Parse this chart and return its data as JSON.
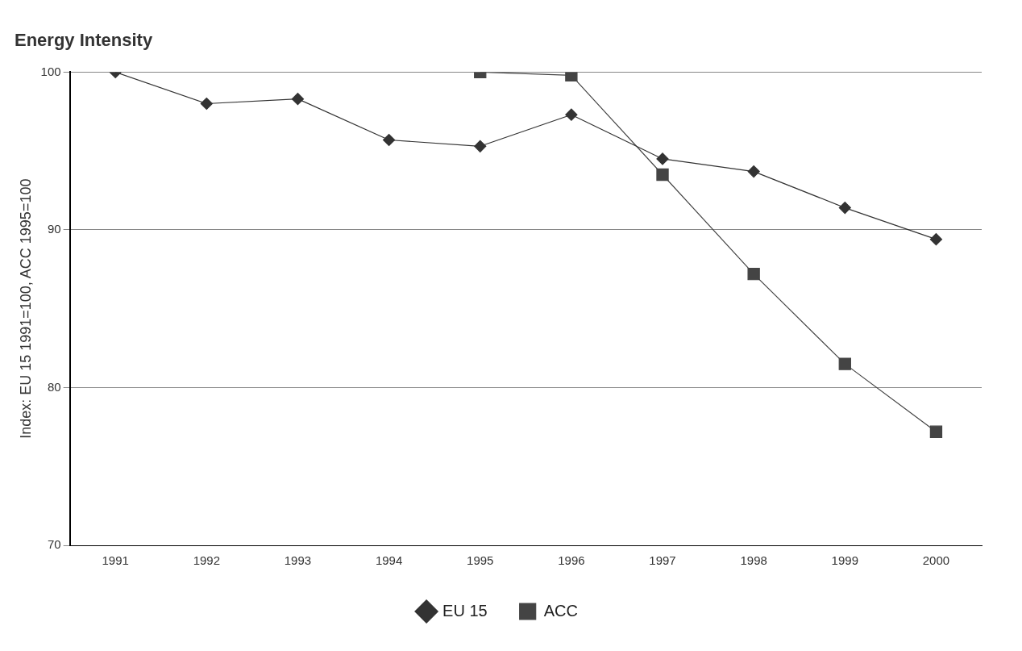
{
  "chart_data": {
    "type": "line",
    "title": "Energy Intensity",
    "ylabel": "Index: EU 15 1991=100, ACC 1995=100",
    "categories": [
      "1991",
      "1992",
      "1993",
      "1994",
      "1995",
      "1996",
      "1997",
      "1998",
      "1999",
      "2000"
    ],
    "series": [
      {
        "name": "EU 15",
        "color": "#333333",
        "marker": "diamond",
        "values": [
          100,
          98.0,
          98.3,
          95.7,
          95.3,
          97.3,
          94.5,
          93.7,
          91.4,
          89.4
        ]
      },
      {
        "name": "ACC",
        "color": "#444444",
        "marker": "square",
        "values": [
          null,
          null,
          null,
          null,
          100,
          99.8,
          93.5,
          87.2,
          81.5,
          77.2
        ]
      }
    ],
    "ylim": [
      70,
      100
    ],
    "yticks": [
      70,
      80,
      90,
      100
    ],
    "grid": "y",
    "legend": "bottom",
    "line_style": "solid"
  }
}
